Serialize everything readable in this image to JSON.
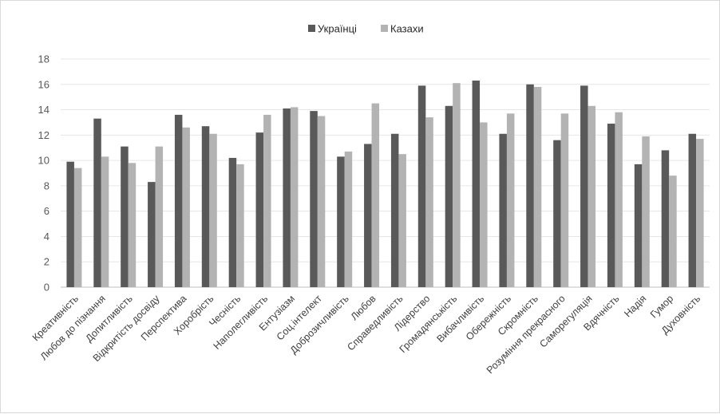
{
  "chart_data": {
    "type": "bar",
    "title": "",
    "xlabel": "",
    "ylabel": "",
    "ylim": [
      0,
      18
    ],
    "yticks": [
      0,
      2,
      4,
      6,
      8,
      10,
      12,
      14,
      16,
      18
    ],
    "grid": true,
    "legend_position": "top-center",
    "categories": [
      "Креативність",
      "Любов до пізнання",
      "Допитливість",
      "Відкритість досвіду",
      "Перспектива",
      "Хоробрість",
      "Чесність",
      "Наполегливість",
      "Ентузіазм",
      "Соц.інтелект",
      "Доброзичливість",
      "Любов",
      "Справедливість",
      "Лідерство",
      "Громадянськість",
      "Вибачливість",
      "Обережність",
      "Скромність",
      "Розуміння прекрасного",
      "Саморегуляція",
      "Вдячність",
      "Надія",
      "Гумор",
      "Духовність"
    ],
    "series": [
      {
        "name": "Українці",
        "color": "#595959",
        "values": [
          9.9,
          13.3,
          11.1,
          8.3,
          13.6,
          12.7,
          10.2,
          12.2,
          14.1,
          13.9,
          10.3,
          11.3,
          12.1,
          15.9,
          14.3,
          16.3,
          12.1,
          16.0,
          11.6,
          15.9,
          12.9,
          9.7,
          10.8,
          12.1
        ]
      },
      {
        "name": "Казахи",
        "color": "#b3b3b3",
        "values": [
          9.4,
          10.3,
          9.8,
          11.1,
          12.6,
          12.1,
          9.7,
          13.6,
          14.2,
          13.5,
          10.7,
          14.5,
          10.5,
          13.4,
          16.1,
          13.0,
          13.7,
          15.8,
          13.7,
          14.3,
          13.8,
          11.9,
          8.8,
          11.7
        ]
      }
    ]
  }
}
